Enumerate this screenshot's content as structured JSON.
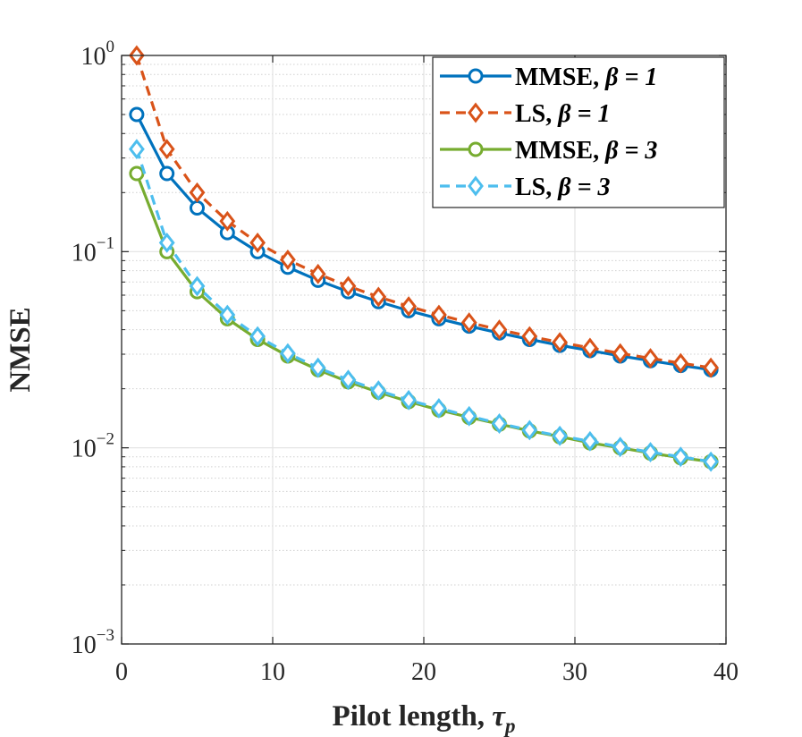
{
  "chart_data": {
    "type": "line",
    "yscale": "log",
    "xlabel": "Pilot length, ",
    "xlabel_symbol": "τ",
    "xlabel_subscript": "p",
    "ylabel": "NMSE",
    "xlim": [
      0,
      40
    ],
    "ylim": [
      0.001,
      1
    ],
    "xticks": [
      0,
      10,
      20,
      30,
      40
    ],
    "yticks": [
      {
        "value": 0.001,
        "base": "10",
        "exp": "−3"
      },
      {
        "value": 0.01,
        "base": "10",
        "exp": "−2"
      },
      {
        "value": 0.1,
        "base": "10",
        "exp": "−1"
      },
      {
        "value": 1,
        "base": "10",
        "exp": "0"
      }
    ],
    "grid": true,
    "legend_position": "top-right",
    "x": [
      1,
      3,
      5,
      7,
      9,
      11,
      13,
      15,
      17,
      19,
      21,
      23,
      25,
      27,
      29,
      31,
      33,
      35,
      37,
      39
    ],
    "series": [
      {
        "name": "MMSE, ",
        "symbol": "β = 1",
        "color": "#0072BD",
        "dash": "solid",
        "marker": "circle",
        "values": [
          0.5,
          0.25,
          0.167,
          0.125,
          0.1,
          0.0833,
          0.0714,
          0.0625,
          0.0556,
          0.05,
          0.0455,
          0.0417,
          0.0385,
          0.0357,
          0.0333,
          0.0313,
          0.0294,
          0.0278,
          0.0263,
          0.025
        ]
      },
      {
        "name": "LS, ",
        "symbol": "β = 1",
        "color": "#D95319",
        "dash": "dashed",
        "marker": "diamond",
        "values": [
          1.0,
          0.333,
          0.2,
          0.143,
          0.111,
          0.0909,
          0.0769,
          0.0667,
          0.0588,
          0.0526,
          0.0476,
          0.0435,
          0.04,
          0.037,
          0.0345,
          0.0323,
          0.0303,
          0.0286,
          0.027,
          0.0256
        ]
      },
      {
        "name": "MMSE, ",
        "symbol": "β = 3",
        "color": "#77AC30",
        "dash": "solid",
        "marker": "circle",
        "values": [
          0.25,
          0.1,
          0.0625,
          0.0455,
          0.0357,
          0.0294,
          0.025,
          0.0217,
          0.0192,
          0.0172,
          0.0156,
          0.0143,
          0.0132,
          0.0122,
          0.0114,
          0.0106,
          0.01,
          0.0094,
          0.0089,
          0.0085
        ]
      },
      {
        "name": "LS, ",
        "symbol": "β = 3",
        "color": "#4DBEEE",
        "dash": "dashed",
        "marker": "diamond",
        "values": [
          0.333,
          0.111,
          0.0667,
          0.0476,
          0.037,
          0.0303,
          0.0256,
          0.0222,
          0.0196,
          0.0175,
          0.0159,
          0.0145,
          0.0133,
          0.0123,
          0.0115,
          0.0108,
          0.0101,
          0.0095,
          0.009,
          0.0085
        ]
      }
    ]
  }
}
